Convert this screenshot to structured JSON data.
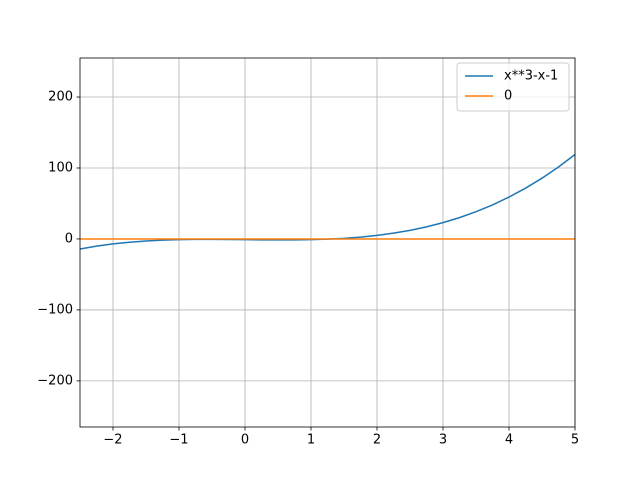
{
  "chart_data": {
    "type": "line",
    "x": [
      -2.5,
      -2.25,
      -2,
      -1.75,
      -1.5,
      -1.25,
      -1,
      -0.75,
      -0.5,
      -0.25,
      0,
      0.25,
      0.5,
      0.75,
      1,
      1.25,
      1.5,
      1.75,
      2,
      2.25,
      2.5,
      2.75,
      3,
      3.25,
      3.5,
      3.75,
      4,
      4.25,
      4.5,
      4.75,
      5
    ],
    "series": [
      {
        "name": "x**3-x-1",
        "color": "#1f77b4",
        "values": [
          -14.125,
          -10.140625,
          -7,
          -4.609375,
          -2.875,
          -1.703125,
          -1,
          -0.671875,
          -0.625,
          -0.765625,
          -1,
          -1.234375,
          -1.375,
          -1.328125,
          -1,
          -0.296875,
          0.875,
          2.609375,
          5,
          8.140625,
          12.125,
          17.046875,
          23,
          30.078125,
          38.375,
          47.984375,
          59,
          71.515625,
          85.625,
          101.421875,
          119
        ]
      },
      {
        "name": "0",
        "color": "#ff7f0e",
        "values": [
          0,
          0,
          0,
          0,
          0,
          0,
          0,
          0,
          0,
          0,
          0,
          0,
          0,
          0,
          0,
          0,
          0,
          0,
          0,
          0,
          0,
          0,
          0,
          0,
          0,
          0,
          0,
          0,
          0,
          0,
          0
        ]
      }
    ],
    "xlim": [
      -2.5,
      5
    ],
    "xticks": [
      {
        "value": -2,
        "label": "−2"
      },
      {
        "value": -1,
        "label": "−1"
      },
      0,
      1,
      2,
      3,
      4,
      5
    ],
    "ylim": [
      -265,
      255
    ],
    "yticks": [
      {
        "value": -200,
        "label": "−200"
      },
      {
        "value": -100,
        "label": "−100"
      },
      0,
      100,
      200
    ],
    "grid": true,
    "legend": "upper right"
  }
}
